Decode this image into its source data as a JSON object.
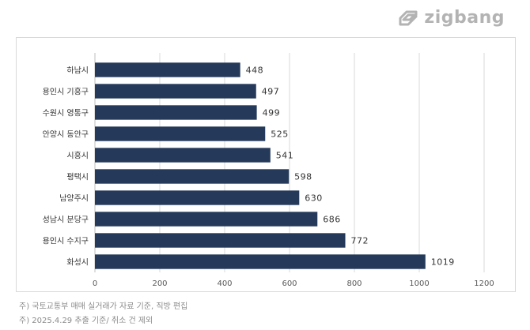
{
  "brand": {
    "name": "zigbang",
    "logo_icon": "zigbang-logo-icon",
    "color": "#b3b3b3"
  },
  "colors": {
    "bar": "#253a5a",
    "grid": "#d9d9d9",
    "text": "#333333",
    "axis": "#595959"
  },
  "chart_data": {
    "type": "bar",
    "orientation": "horizontal",
    "categories": [
      "하남시",
      "용인시 기흥구",
      "수원시 영통구",
      "안양시 동안구",
      "시흥시",
      "평택시",
      "남양주시",
      "성남시 분당구",
      "용인시 수지구",
      "화성시"
    ],
    "values": [
      448,
      497,
      499,
      525,
      541,
      598,
      630,
      686,
      772,
      1019
    ],
    "xlim": [
      0,
      1200
    ],
    "xticks": [
      0,
      200,
      400,
      600,
      800,
      1000,
      1200
    ],
    "grid": true,
    "data_labels": true,
    "title": "",
    "xlabel": "",
    "ylabel": ""
  },
  "notes": [
    "주) 국토교통부 매매 실거래가 자료 기준, 직방 편집",
    "주) 2025.4.29 추출 기준/ 취소 건 제외"
  ]
}
